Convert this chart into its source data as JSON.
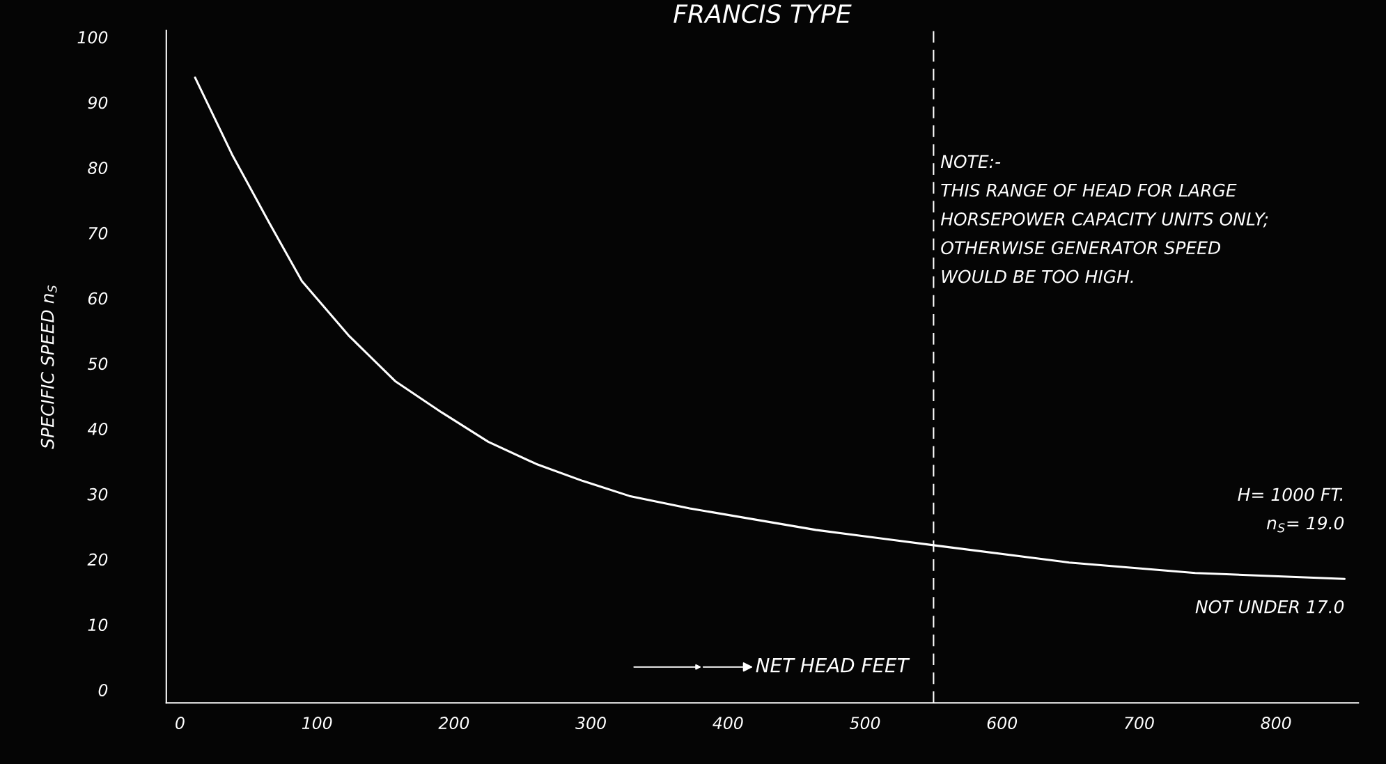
{
  "chart_data": {
    "type": "line",
    "title": "FRANCIS TYPE",
    "xlabel": "NET HEAD FEET",
    "ylabel": "SPECIFIC SPEED n$_{S}$",
    "x": [
      11,
      38,
      65,
      89,
      123,
      157,
      191,
      225,
      260,
      294,
      328,
      372,
      464,
      552,
      649,
      741,
      850
    ],
    "series": [
      {
        "color": "#ffffff",
        "values": [
          93.8,
          82,
          71.6,
          62.6,
          54.3,
          47.3,
          42.5,
          38,
          34.6,
          32,
          29.7,
          27.8,
          24.5,
          22.1,
          19.5,
          17.9,
          17.0
        ]
      }
    ],
    "xlim": [
      -10,
      860
    ],
    "ylim": [
      -2,
      101
    ],
    "xticks": [
      0,
      100,
      200,
      300,
      400,
      500,
      600,
      700,
      800
    ],
    "yticks": [
      0,
      10,
      20,
      30,
      40,
      50,
      60,
      70,
      80,
      90,
      100
    ],
    "ref_lines": [
      {
        "axis": "x",
        "value": 550,
        "color": "#ffffff",
        "line_style": "dashed"
      }
    ],
    "annotations": [
      "NOTE:-\nTHIS RANGE OF HEAD FOR LARGE\nHORSEPOWER CAPACITY UNITS ONLY;\nOTHERWISE GENERATOR SPEED\nWOULD BE TOO HIGH.",
      "H= 1000 FT.\nn$_{S}$= 19.0",
      "NOT UNDER 17.0"
    ],
    "grid": false,
    "legend": false,
    "marker": "none",
    "line_style": "solid"
  }
}
